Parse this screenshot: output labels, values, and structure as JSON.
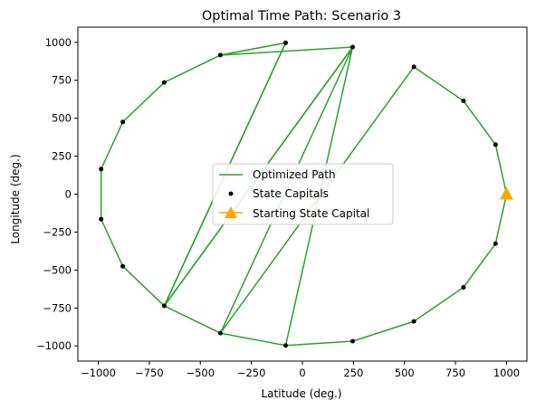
{
  "chart_data": {
    "type": "line",
    "title": "Optimal Time Path: Scenario 3",
    "xlabel": "Latitude (deg.)",
    "ylabel": "Longitude (deg.)",
    "xlim": [
      -1100,
      1100
    ],
    "ylim": [
      -1100,
      1100
    ],
    "x_ticks": [
      -1000,
      -750,
      -500,
      -250,
      0,
      250,
      500,
      750,
      1000
    ],
    "y_ticks": [
      -1000,
      -750,
      -500,
      -250,
      0,
      250,
      500,
      750,
      1000
    ],
    "x_tick_labels": [
      "−1000",
      "−750",
      "−500",
      "−250",
      "0",
      "250",
      "500",
      "750",
      "1000"
    ],
    "y_tick_labels": [
      "−1000",
      "−750",
      "−500",
      "−250",
      "0",
      "250",
      "500",
      "750",
      "1000"
    ],
    "grid": false,
    "legend_position": "center",
    "series": [
      {
        "name": "Optimized Path",
        "kind": "line",
        "color": "#2ca02c",
        "points": [
          [
            1000,
            0
          ],
          [
            946,
            -326
          ],
          [
            789,
            -614
          ],
          [
            546,
            -838
          ],
          [
            246,
            -969
          ],
          [
            -82,
            -997
          ],
          [
            -402,
            -916
          ],
          [
            -677,
            -736
          ],
          [
            246,
            969
          ],
          [
            -402,
            916
          ],
          [
            -677,
            736
          ],
          [
            -880,
            475
          ],
          [
            -986,
            165
          ],
          [
            -986,
            -165
          ],
          [
            -880,
            -475
          ],
          [
            -677,
            -736
          ],
          [
            -82,
            997
          ],
          [
            -402,
            916
          ]
        ]
      },
      {
        "name": "State Capitals",
        "kind": "scatter",
        "color": "#000000",
        "points": [
          [
            1000,
            0
          ],
          [
            946,
            326
          ],
          [
            789,
            614
          ],
          [
            546,
            838
          ],
          [
            246,
            969
          ],
          [
            -82,
            997
          ],
          [
            -402,
            916
          ],
          [
            -677,
            736
          ],
          [
            -880,
            475
          ],
          [
            -986,
            165
          ],
          [
            -986,
            -165
          ],
          [
            -880,
            -475
          ],
          [
            -677,
            -736
          ],
          [
            -402,
            -916
          ],
          [
            -82,
            -997
          ],
          [
            246,
            -969
          ],
          [
            546,
            -838
          ],
          [
            789,
            -614
          ],
          [
            946,
            -326
          ]
        ]
      },
      {
        "name": "Starting State Capital",
        "kind": "marker",
        "color": "#ffa500",
        "points": [
          [
            1000,
            0
          ]
        ]
      }
    ],
    "extra_path_segments": [
      [
        [
          -82,
          997
        ],
        [
          246,
          969
        ]
      ]
    ],
    "return_path": [
      [
        -402,
        916
      ],
      [
        -82,
        997
      ],
      [
        -677,
        -736
      ],
      [
        246,
        969
      ],
      [
        -402,
        -916
      ]
    ]
  }
}
